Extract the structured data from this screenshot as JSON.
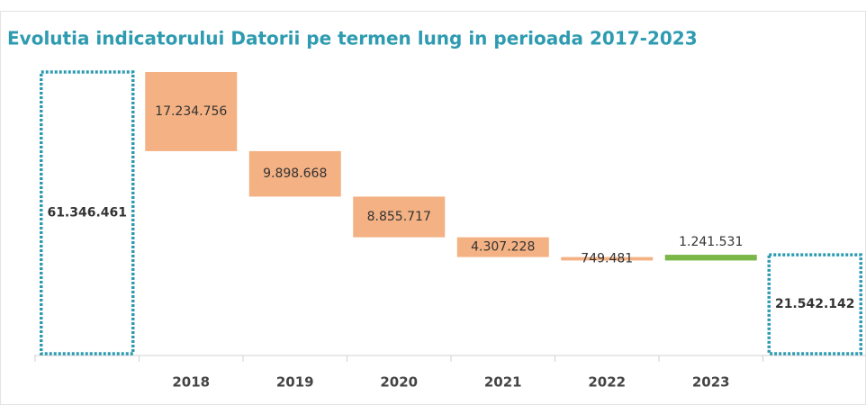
{
  "chart_data": {
    "type": "waterfall",
    "title": "Evolutia indicatorului Datorii pe termen lung in perioada 2017-2023",
    "categories": [
      null,
      "2018",
      "2019",
      "2020",
      "2021",
      "2022",
      "2023",
      null
    ],
    "measure": [
      "total",
      "down",
      "down",
      "down",
      "down",
      "down",
      "up",
      "total"
    ],
    "values": [
      61346461,
      17234756,
      9898668,
      8855717,
      4307228,
      749481,
      1241531,
      21542142
    ],
    "value_labels": [
      "61.346.461",
      "17.234.756",
      "9.898.668",
      "8.855.717",
      "4.307.228",
      "749.481",
      "1.241.531",
      "21.542.142"
    ],
    "colors": {
      "total": "#2e9bb0",
      "down": "#f4b183",
      "up": "#7ab648"
    },
    "title_color": "#2e9bb0"
  }
}
